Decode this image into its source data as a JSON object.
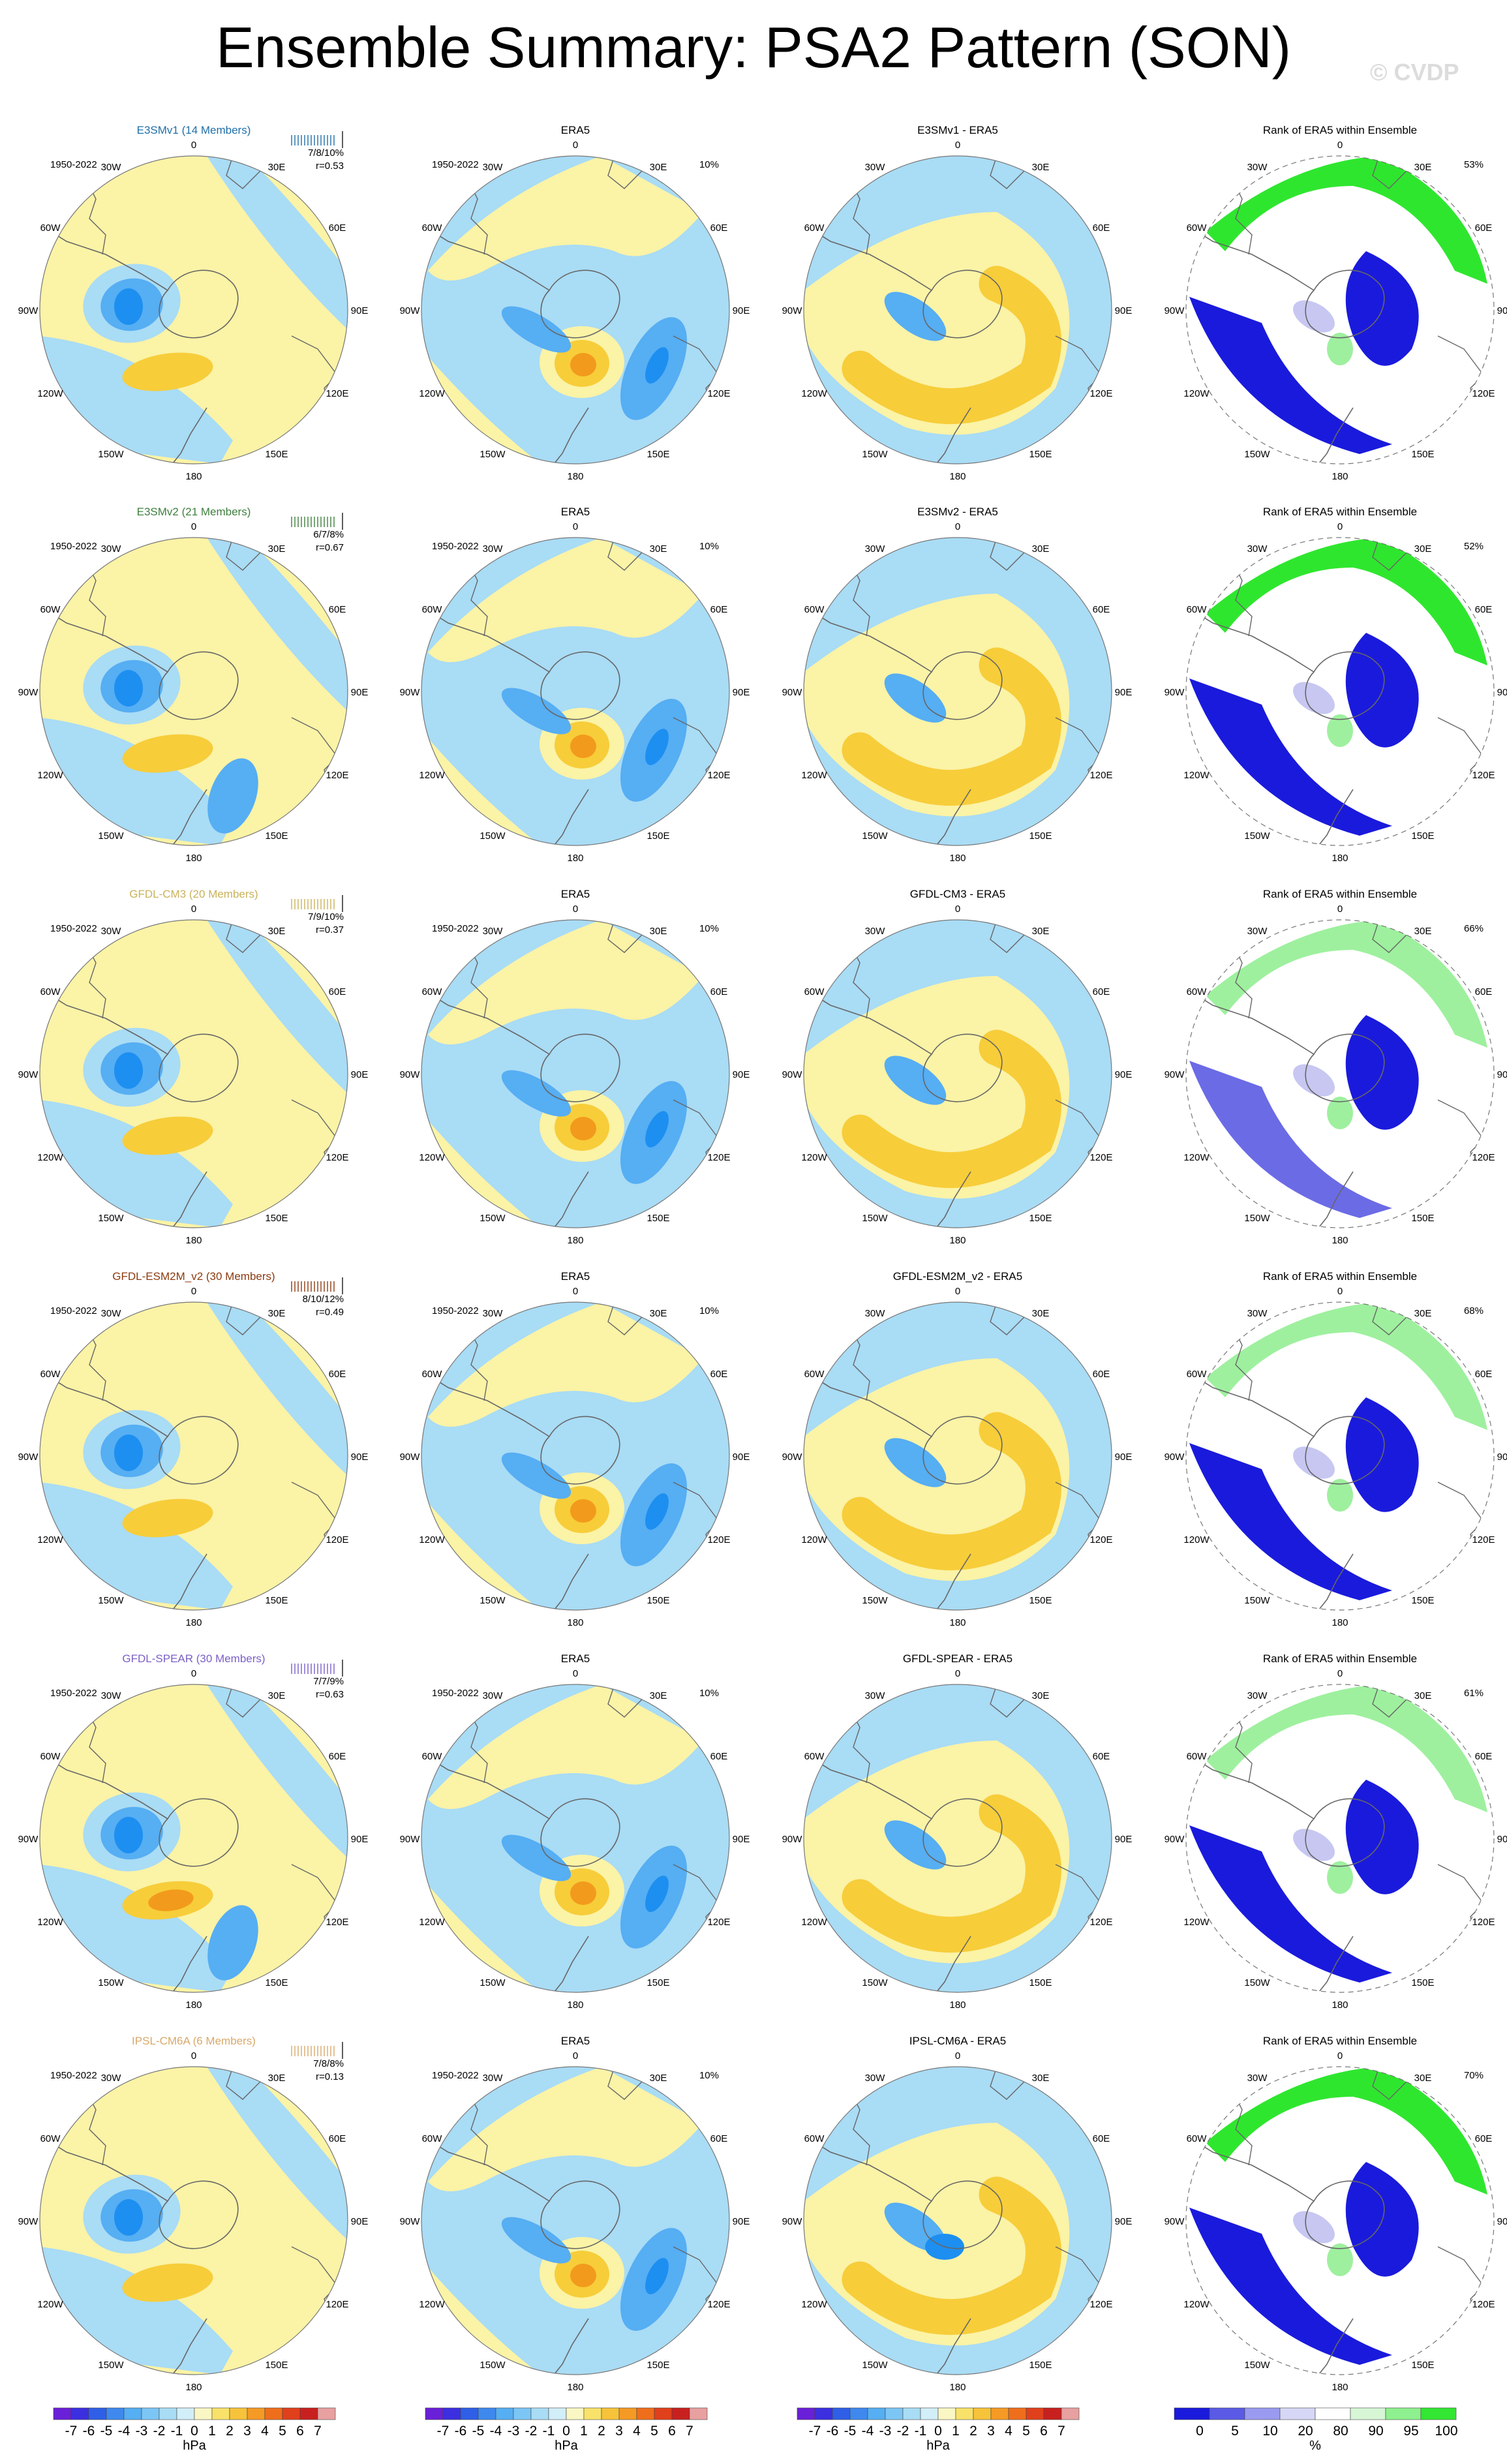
{
  "title": "Ensemble Summary: PSA2 Pattern (SON)",
  "watermark": "© CVDP",
  "period": "1950-2022",
  "lon_labels": {
    "top": "0",
    "bottom": "180",
    "w30": "30W",
    "e30": "30E",
    "w60": "60W",
    "e60": "60E",
    "w90": "90W",
    "e90": "90E",
    "w120": "120W",
    "e120": "120E",
    "w150": "150W",
    "e150": "150E"
  },
  "rows": [
    {
      "model": "E3SMv1 (14 Members)",
      "model_short": "E3SMv1",
      "color": "#1f6fa8",
      "pct": "7/8/10%",
      "r": "r=0.53",
      "era5_pct": "10%",
      "rank_pct": "53%",
      "obs_title": "ERA5",
      "diff_title": "E3SMv1 - ERA5",
      "rank_title": "Rank of ERA5 within Ensemble"
    },
    {
      "model": "E3SMv2 (21 Members)",
      "model_short": "E3SMv2",
      "color": "#3f7f3f",
      "pct": "6/7/8%",
      "r": "r=0.67",
      "era5_pct": "10%",
      "rank_pct": "52%",
      "obs_title": "ERA5",
      "diff_title": "E3SMv2 - ERA5",
      "rank_title": "Rank of ERA5 within Ensemble"
    },
    {
      "model": "GFDL-CM3 (20 Members)",
      "model_short": "GFDL-CM3",
      "color": "#c9b25a",
      "pct": "7/9/10%",
      "r": "r=0.37",
      "era5_pct": "10%",
      "rank_pct": "66%",
      "obs_title": "ERA5",
      "diff_title": "GFDL-CM3 - ERA5",
      "rank_title": "Rank of ERA5 within Ensemble"
    },
    {
      "model": "GFDL-ESM2M_v2 (30 Members)",
      "model_short": "GFDL-ESM2M_v2",
      "color": "#8b3a0f",
      "pct": "8/10/12%",
      "r": "r=0.49",
      "era5_pct": "10%",
      "rank_pct": "68%",
      "obs_title": "ERA5",
      "diff_title": "GFDL-ESM2M_v2 - ERA5",
      "rank_title": "Rank of ERA5 within Ensemble"
    },
    {
      "model": "GFDL-SPEAR (30 Members)",
      "model_short": "GFDL-SPEAR",
      "color": "#7b5fc7",
      "pct": "7/7/9%",
      "r": "r=0.63",
      "era5_pct": "10%",
      "rank_pct": "61%",
      "obs_title": "ERA5",
      "diff_title": "GFDL-SPEAR - ERA5",
      "rank_title": "Rank of ERA5 within Ensemble"
    },
    {
      "model": "IPSL-CM6A (6 Members)",
      "model_short": "IPSL-CM6A",
      "color": "#d9a86a",
      "pct": "7/8/8%",
      "r": "r=0.13",
      "era5_pct": "10%",
      "rank_pct": "70%",
      "obs_title": "ERA5",
      "diff_title": "IPSL-CM6A - ERA5",
      "rank_title": "Rank of ERA5 within Ensemble"
    }
  ],
  "colorbar_hpa": {
    "labels": [
      "-7",
      "-6",
      "-5",
      "-4",
      "-3",
      "-2",
      "-1",
      "0",
      "1",
      "2",
      "3",
      "4",
      "5",
      "6",
      "7"
    ],
    "unit": "hPa",
    "colors": [
      "#6a1fd8",
      "#3b2fe0",
      "#2f5fe6",
      "#3f88ee",
      "#56aef3",
      "#7cc6f5",
      "#a9dcf5",
      "#d2eef8",
      "#fbf7c4",
      "#f9e26a",
      "#f7c33a",
      "#f59a24",
      "#ef6e1c",
      "#e0401c",
      "#c8201f",
      "#e8a0a0"
    ]
  },
  "colorbar_rank": {
    "labels": [
      "0",
      "5",
      "10",
      "20",
      "80",
      "90",
      "95",
      "100"
    ],
    "unit": "%",
    "colors": [
      "#1a1adc",
      "#5a5ae6",
      "#9a9af0",
      "#d6d6f6",
      "#ffffff",
      "#d6f6d6",
      "#8ef08e",
      "#33e633"
    ]
  }
}
